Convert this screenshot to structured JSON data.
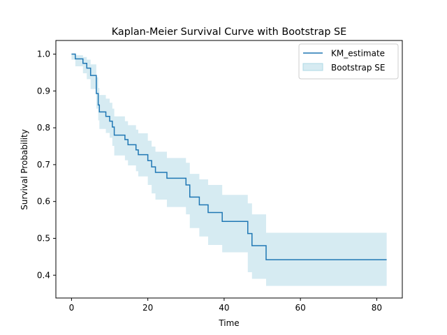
{
  "chart_data": {
    "type": "line",
    "title": "Kaplan-Meier Survival Curve with Bootstrap SE",
    "xlabel": "Time",
    "ylabel": "Survival Probability",
    "xlim": [
      -4.1,
      86.7
    ],
    "ylim": [
      0.338,
      1.037
    ],
    "xticks": [
      0,
      20,
      40,
      60,
      80
    ],
    "yticks": [
      0.4,
      0.5,
      0.6,
      0.7,
      0.8,
      0.9,
      1.0
    ],
    "xtick_labels": [
      "0",
      "20",
      "40",
      "60",
      "80"
    ],
    "ytick_labels": [
      "0.4",
      "0.5",
      "0.6",
      "0.7",
      "0.8",
      "0.9",
      "1.0"
    ],
    "grid": false,
    "legend_position": "top-right",
    "legend": [
      "KM_estimate",
      "Bootstrap SE"
    ],
    "series": [
      {
        "name": "KM_estimate",
        "kind": "step",
        "color": "#1f77b4",
        "x": [
          0,
          1,
          3,
          4,
          5,
          6.5,
          7,
          7.3,
          9,
          10,
          10.7,
          11.2,
          14,
          14.8,
          16.9,
          17.5,
          20,
          21,
          22,
          25,
          30,
          31,
          33.5,
          35.8,
          39.5,
          46.2,
          47.3,
          51,
          82.6
        ],
        "y": [
          1.0,
          0.987,
          0.975,
          0.962,
          0.942,
          0.893,
          0.862,
          0.843,
          0.831,
          0.818,
          0.802,
          0.78,
          0.768,
          0.754,
          0.74,
          0.727,
          0.711,
          0.694,
          0.679,
          0.663,
          0.645,
          0.612,
          0.591,
          0.57,
          0.546,
          0.513,
          0.48,
          0.442,
          0.442
        ]
      },
      {
        "name": "Bootstrap SE",
        "kind": "band",
        "color": "#add8e6",
        "x": [
          0,
          1,
          3,
          4,
          5,
          6.5,
          7,
          7.3,
          9,
          10,
          10.7,
          11.2,
          14,
          14.8,
          16.9,
          17.5,
          20,
          21,
          22,
          25,
          30,
          31,
          33.5,
          35.8,
          39.5,
          46.2,
          47.3,
          51,
          82.6
        ],
        "lower": [
          0.985,
          0.967,
          0.948,
          0.932,
          0.905,
          0.852,
          0.82,
          0.797,
          0.786,
          0.773,
          0.751,
          0.725,
          0.712,
          0.698,
          0.682,
          0.668,
          0.645,
          0.622,
          0.605,
          0.585,
          0.565,
          0.528,
          0.505,
          0.482,
          0.462,
          0.408,
          0.39,
          0.371,
          0.371
        ],
        "upper": [
          1.0,
          0.997,
          0.992,
          0.985,
          0.972,
          0.937,
          0.908,
          0.889,
          0.879,
          0.868,
          0.852,
          0.831,
          0.818,
          0.807,
          0.795,
          0.785,
          0.765,
          0.749,
          0.735,
          0.718,
          0.705,
          0.675,
          0.66,
          0.645,
          0.618,
          0.595,
          0.565,
          0.515,
          0.515
        ]
      }
    ]
  }
}
